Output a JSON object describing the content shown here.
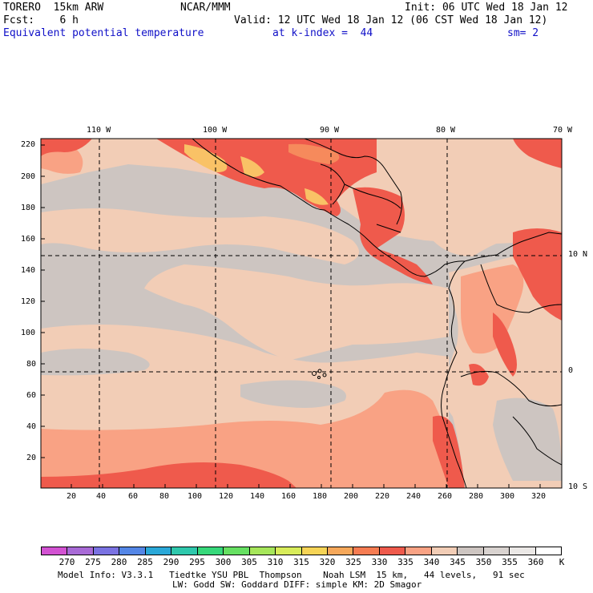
{
  "header": {
    "model": "TORERO  15km ARW",
    "center": "NCAR/MMM",
    "init": "Init: 06 UTC Wed 18 Jan 12",
    "fcst": "Fcst:    6 h",
    "valid": "Valid: 12 UTC Wed 18 Jan 12 (06 CST Wed 18 Jan 12)",
    "field": "Equivalent potential temperature",
    "level": "at k-index =  44",
    "smooth": "sm= 2"
  },
  "map": {
    "top_lon_labels": [
      "110 W",
      "100 W",
      "90 W",
      "80 W",
      "70 W"
    ],
    "right_lat_labels": [
      "10 N",
      "0",
      "10 S"
    ],
    "y_grid_ticks": [
      "220",
      "200",
      "180",
      "160",
      "140",
      "120",
      "100",
      "80",
      "60",
      "40",
      "20"
    ],
    "x_grid_ticks": [
      "20",
      "40",
      "60",
      "80",
      "100",
      "120",
      "140",
      "160",
      "180",
      "200",
      "220",
      "240",
      "260",
      "280",
      "300",
      "320"
    ],
    "colors": {
      "ocean_gray": "#cdc5c1",
      "tan": "#f2cdb6",
      "salmon": "#f9a284",
      "red": "#ef5a4c",
      "orange": "#f68a5c",
      "yellow": "#f9c266"
    }
  },
  "colorbar": {
    "labels": [
      "270",
      "275",
      "280",
      "285",
      "290",
      "295",
      "300",
      "305",
      "310",
      "315",
      "320",
      "325",
      "330",
      "335",
      "340",
      "345",
      "350",
      "355",
      "360"
    ],
    "unit": "K",
    "colors": [
      "#d252d2",
      "#a86ad6",
      "#7a72e2",
      "#5486e6",
      "#2aa8d8",
      "#2ec8ac",
      "#36d87a",
      "#66e062",
      "#a6e65a",
      "#d8ec5a",
      "#f6d456",
      "#f6a85a",
      "#f67c52",
      "#ef5a4c",
      "#f9a284",
      "#f2cdb6",
      "#cdc5c1",
      "#d9d3d0",
      "#ebe8e6",
      "#ffffff"
    ]
  },
  "footer": {
    "line1": "Model Info: V3.3.1   Tiedtke YSU PBL  Thompson    Noah LSM  15 km,   44 levels,   91 sec",
    "line2": "LW: Godd SW: Goddard DIFF: simple KM: 2D Smagor"
  }
}
